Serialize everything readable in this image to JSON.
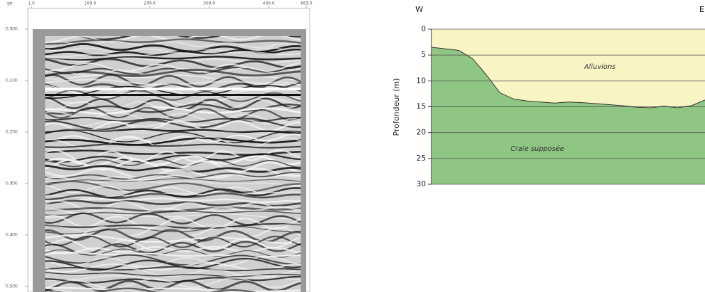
{
  "chart_data": [
    {
      "type": "seismic",
      "x_label": "SP:",
      "xlim": [
        1,
        463
      ],
      "xticks": [
        {
          "value": 1,
          "label": "1.0"
        },
        {
          "value": 100,
          "label": "100.0"
        },
        {
          "value": 200,
          "label": "200.0"
        },
        {
          "value": 300,
          "label": "300.0"
        },
        {
          "value": 400,
          "label": "400.0"
        },
        {
          "value": 463,
          "label": "463.0"
        }
      ],
      "ylim": [
        0,
        0.5
      ],
      "yticks": [
        {
          "value": 0,
          "label": "0.000"
        },
        {
          "value": 0.1,
          "label": "0.100"
        },
        {
          "value": 0.2,
          "label": "0.200"
        },
        {
          "value": 0.3,
          "label": "0.300"
        },
        {
          "value": 0.4,
          "label": "0.400"
        },
        {
          "value": 0.5,
          "label": "0.500"
        }
      ]
    },
    {
      "type": "section",
      "y_label": "Profondeur (m)",
      "left_label": "W",
      "right_label": "E",
      "ylim": [
        0,
        30
      ],
      "yticks": [
        0,
        5,
        10,
        15,
        20,
        25,
        30
      ],
      "grid": true,
      "values": [
        3.5,
        3.8,
        4.1,
        5.7,
        8.8,
        12.3,
        13.5,
        13.9,
        14.1,
        14.3,
        14.1,
        14.2,
        14.4,
        14.6,
        14.8,
        15.1,
        15.2,
        14.9,
        15.2,
        14.8,
        13.7
      ],
      "upper_name": "Alluvions",
      "upper_color": "#f8f4c4",
      "lower_name": "Craie supposée",
      "lower_color": "#8fc684"
    }
  ]
}
